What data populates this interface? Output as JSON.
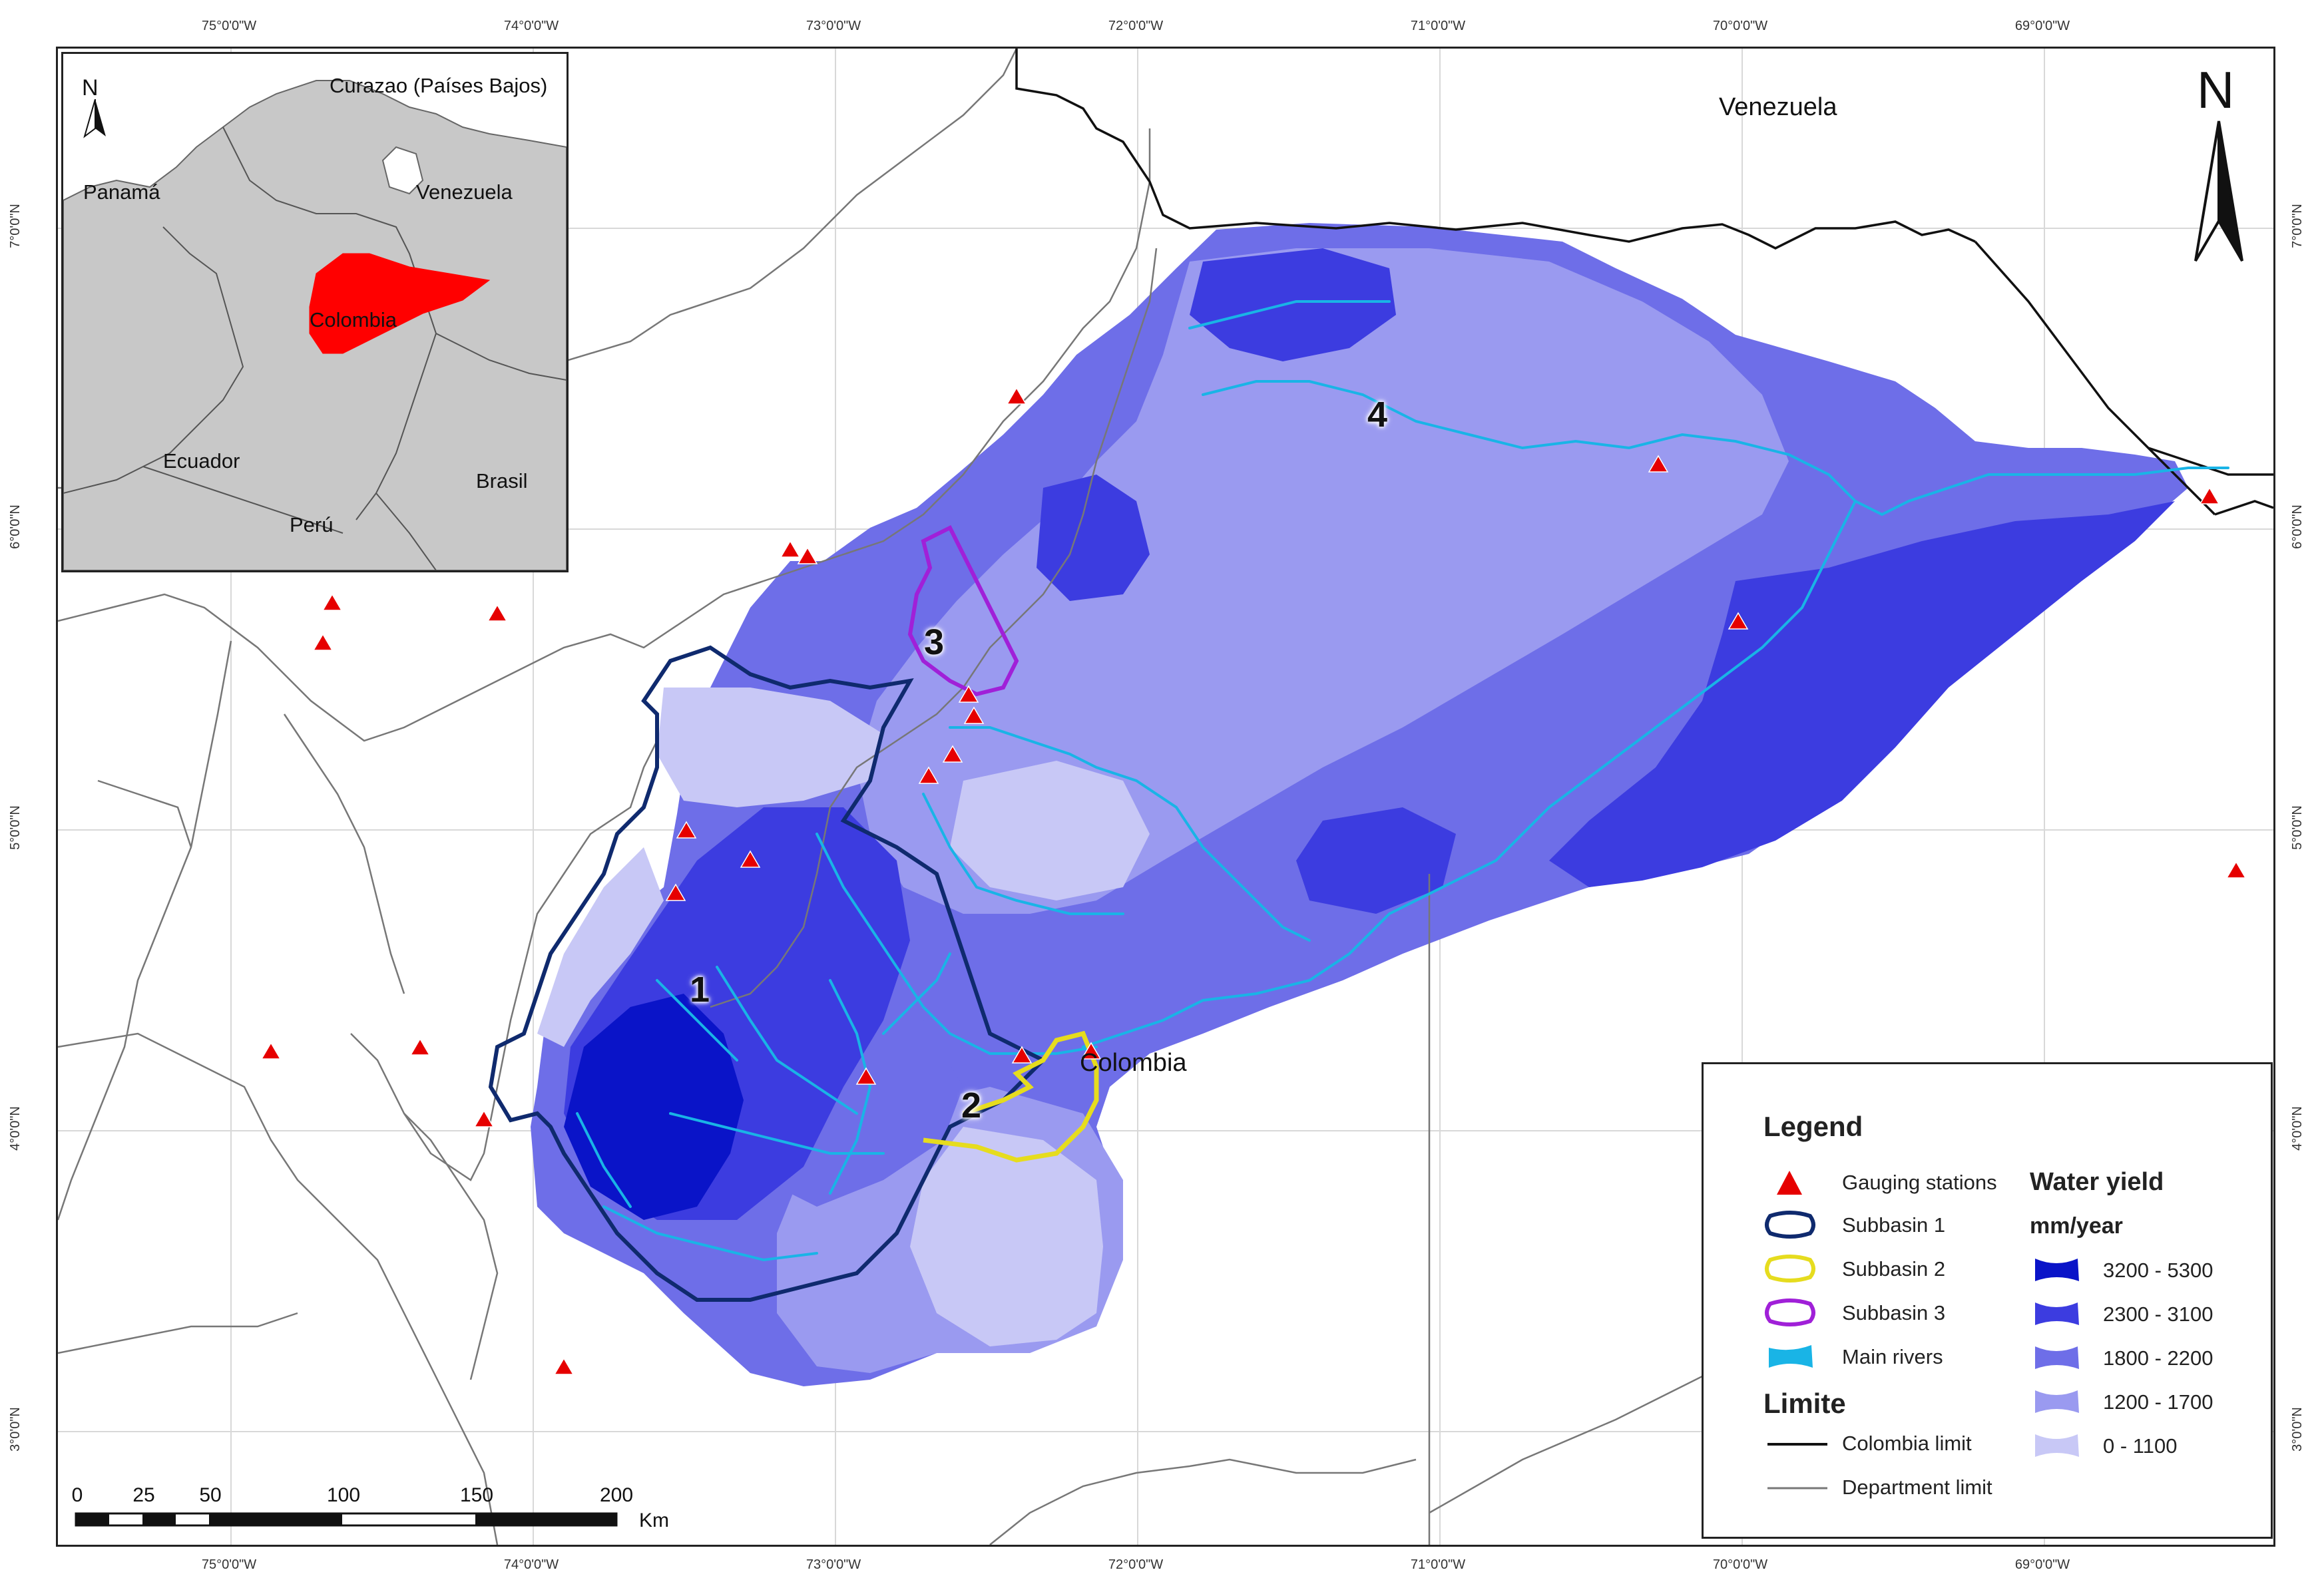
{
  "map": {
    "lon_ticks": [
      "75°0'0\"W",
      "74°0'0\"W",
      "73°0'0\"W",
      "72°0'0\"W",
      "71°0'0\"W",
      "70°0'0\"W",
      "69°0'0\"W"
    ],
    "lat_ticks": [
      "7°0'0\"N",
      "6°0'0\"N",
      "5°0'0\"N",
      "4°0'0\"N",
      "3°0'0\"N"
    ],
    "labels": {
      "venezuela": "Venezuela",
      "colombia": "Colombia"
    },
    "subbasin_numbers": [
      "1",
      "2",
      "3",
      "4"
    ],
    "north_letter": "N",
    "colors": {
      "wy_3200_5300": "#0a14c8",
      "wy_2300_3100": "#3c3ce0",
      "wy_1800_2200": "#6e6ee8",
      "wy_1200_1700": "#9a9af0",
      "wy_0_1100": "#c8c8f6",
      "subbasin1": "#0f2a6e",
      "subbasin2": "#e6dc1e",
      "subbasin3": "#a020d8",
      "rivers": "#19b4e6",
      "stations": "#e60000"
    }
  },
  "inset": {
    "labels": {
      "curazao": "Curazao (Países Bajos)",
      "panama": "Panamá",
      "venezuela": "Venezuela",
      "colombia": "Colombia",
      "ecuador": "Ecuador",
      "brasil": "Brasil",
      "peru": "Perú"
    },
    "north_letter": "N"
  },
  "legend": {
    "title": "Legend",
    "items": {
      "stations": "Gauging stations",
      "sub1": "Subbasin 1",
      "sub2": "Subbasin 2",
      "sub3": "Subbasin 3",
      "rivers": "Main rivers"
    },
    "limite_title": "Limite",
    "limits": {
      "colombia": "Colombia limit",
      "department": "Department limit"
    },
    "wy_title": "Water yield",
    "wy_unit": "mm/year",
    "wy_classes": [
      "3200 - 5300",
      "2300 - 3100",
      "1800 - 2200",
      "1200 - 1700",
      "0 - 1100"
    ]
  },
  "scale": {
    "ticks": [
      "0",
      "25",
      "50",
      "100",
      "150",
      "200"
    ],
    "unit": "Km"
  }
}
